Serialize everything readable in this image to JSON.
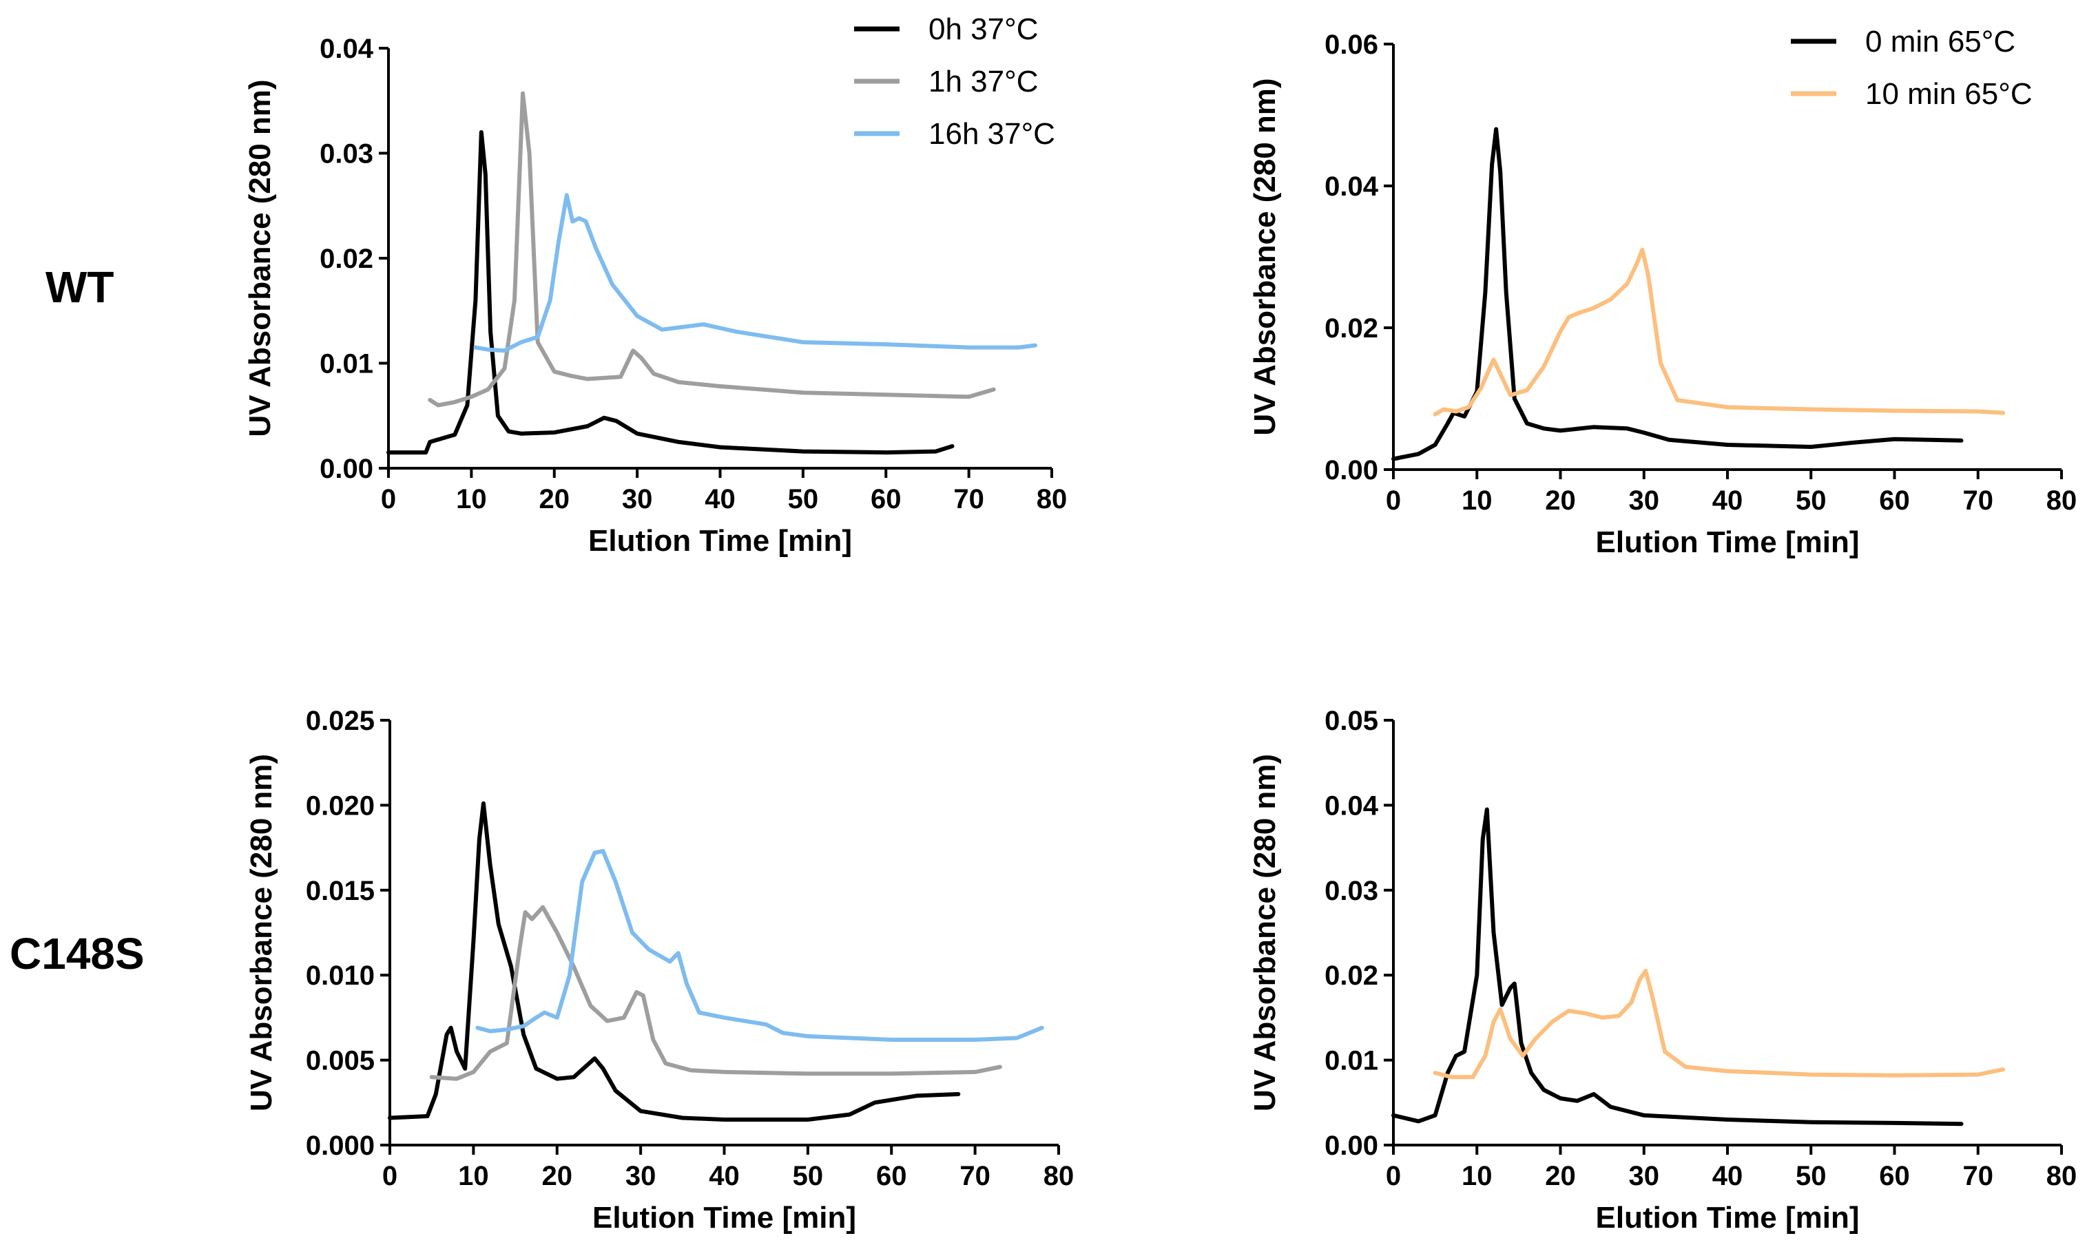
{
  "row_labels": {
    "top": "WT",
    "bottom": "C148S"
  },
  "chart_data": [
    {
      "type": "line",
      "row": "WT",
      "xlabel": "Elution Time [min]",
      "ylabel": "UV Absorbance (280 nm)",
      "xlim": [
        0,
        80
      ],
      "ylim": [
        0,
        0.04
      ],
      "xticks": [
        "0",
        "10",
        "20",
        "30",
        "40",
        "50",
        "60",
        "70",
        "80"
      ],
      "yticks": [
        "0.00",
        "0.01",
        "0.02",
        "0.03",
        "0.04"
      ],
      "legend_position": "top-right",
      "series": [
        {
          "name": "0h 37°C",
          "color": "#000000",
          "x": [
            0,
            4.5,
            5,
            8,
            9.5,
            10.5,
            11.2,
            11.7,
            12.3,
            13.2,
            14.5,
            16,
            20,
            24,
            26,
            27.5,
            30,
            35,
            40,
            50,
            60,
            66,
            68
          ],
          "y": [
            0.0015,
            0.0015,
            0.0025,
            0.0032,
            0.006,
            0.016,
            0.032,
            0.028,
            0.013,
            0.005,
            0.0035,
            0.0033,
            0.0034,
            0.004,
            0.0048,
            0.0045,
            0.0033,
            0.0025,
            0.002,
            0.0016,
            0.0015,
            0.0016,
            0.0021
          ]
        },
        {
          "name": "1h 37°C",
          "color": "#9e9e9e",
          "x": [
            5,
            6,
            8,
            10,
            12,
            14,
            15.2,
            16.2,
            17,
            18,
            20,
            22,
            24,
            28,
            29.5,
            30.5,
            32,
            35,
            40,
            50,
            60,
            70,
            73
          ],
          "y": [
            0.0065,
            0.006,
            0.0063,
            0.0068,
            0.0075,
            0.0095,
            0.016,
            0.0357,
            0.03,
            0.012,
            0.0092,
            0.0088,
            0.0085,
            0.0087,
            0.0112,
            0.0105,
            0.009,
            0.0082,
            0.0078,
            0.0072,
            0.007,
            0.0068,
            0.0075
          ]
        },
        {
          "name": "16h 37°C",
          "color": "#7ebcef",
          "x": [
            10.5,
            12,
            14,
            16,
            18,
            19.5,
            20.5,
            21.5,
            22.2,
            23,
            23.8,
            25,
            27,
            30,
            33,
            36,
            38,
            42,
            50,
            60,
            70,
            76,
            78
          ],
          "y": [
            0.0115,
            0.0113,
            0.0112,
            0.012,
            0.0125,
            0.016,
            0.0215,
            0.026,
            0.0235,
            0.0238,
            0.0235,
            0.021,
            0.0175,
            0.0145,
            0.0132,
            0.0135,
            0.0137,
            0.013,
            0.012,
            0.0118,
            0.0115,
            0.0115,
            0.0117
          ]
        }
      ]
    },
    {
      "type": "line",
      "row": "WT",
      "xlabel": "Elution Time [min]",
      "ylabel": "UV Absorbance (280 nm)",
      "xlim": [
        0,
        80
      ],
      "ylim": [
        0,
        0.06
      ],
      "xticks": [
        "0",
        "10",
        "20",
        "30",
        "40",
        "50",
        "60",
        "70",
        "80"
      ],
      "yticks": [
        "0.00",
        "0.02",
        "0.04",
        "0.06"
      ],
      "legend_position": "top-right",
      "series": [
        {
          "name": "0 min 65°C",
          "color": "#000000",
          "x": [
            0,
            3,
            5,
            6.5,
            7.2,
            8.5,
            10,
            11,
            11.8,
            12.3,
            12.8,
            13.5,
            14.5,
            16,
            18,
            20,
            24,
            28,
            30,
            33,
            40,
            50,
            55,
            60,
            68
          ],
          "y": [
            0.0015,
            0.0022,
            0.0035,
            0.0065,
            0.008,
            0.0075,
            0.011,
            0.025,
            0.043,
            0.048,
            0.042,
            0.025,
            0.01,
            0.0065,
            0.0058,
            0.0055,
            0.006,
            0.0058,
            0.0052,
            0.0042,
            0.0035,
            0.0032,
            0.0038,
            0.0043,
            0.0041
          ]
        },
        {
          "name": "10 min 65°C",
          "color": "#fcbf7e",
          "x": [
            5,
            6,
            7.5,
            9,
            10.5,
            11.5,
            12,
            12.8,
            14,
            16,
            18,
            20,
            21,
            22,
            24,
            26,
            28,
            29.2,
            29.8,
            30.5,
            32,
            34,
            40,
            50,
            60,
            70,
            73
          ],
          "y": [
            0.0078,
            0.0085,
            0.0082,
            0.0088,
            0.0115,
            0.0142,
            0.0155,
            0.0135,
            0.0105,
            0.0112,
            0.0145,
            0.0195,
            0.0215,
            0.022,
            0.0228,
            0.024,
            0.0262,
            0.0292,
            0.031,
            0.0275,
            0.015,
            0.0098,
            0.0088,
            0.0085,
            0.0083,
            0.0082,
            0.008
          ]
        }
      ]
    },
    {
      "type": "line",
      "row": "C148S",
      "xlabel": "Elution Time [min]",
      "ylabel": "UV Absorbance (280 nm)",
      "xlim": [
        0,
        80
      ],
      "ylim": [
        0,
        0.025
      ],
      "xticks": [
        "0",
        "10",
        "20",
        "30",
        "40",
        "50",
        "60",
        "70",
        "80"
      ],
      "yticks": [
        "0.000",
        "0.005",
        "0.010",
        "0.015",
        "0.020",
        "0.025"
      ],
      "legend_position": "none",
      "series": [
        {
          "name": "0h 37°C",
          "color": "#000000",
          "x": [
            0,
            4.5,
            5.5,
            6.8,
            7.3,
            8,
            9,
            10,
            10.7,
            11.2,
            12,
            13,
            14.5,
            16,
            17.5,
            20,
            22,
            24.5,
            25.5,
            27,
            30,
            35,
            40,
            50,
            55,
            58,
            63,
            68
          ],
          "y": [
            0.0016,
            0.0017,
            0.003,
            0.0065,
            0.0069,
            0.0055,
            0.0045,
            0.012,
            0.018,
            0.0201,
            0.0165,
            0.013,
            0.0105,
            0.0065,
            0.0045,
            0.0039,
            0.004,
            0.0051,
            0.0045,
            0.0032,
            0.002,
            0.0016,
            0.0015,
            0.0015,
            0.0018,
            0.0025,
            0.0029,
            0.003
          ]
        },
        {
          "name": "1h 37°C",
          "color": "#9e9e9e",
          "x": [
            5,
            8,
            10,
            12,
            14,
            15.5,
            16.2,
            17,
            18.3,
            20,
            22,
            24,
            26,
            28,
            29.5,
            30.3,
            31.5,
            33,
            36,
            40,
            50,
            60,
            70,
            73
          ],
          "y": [
            0.004,
            0.0039,
            0.0043,
            0.0055,
            0.006,
            0.0115,
            0.0137,
            0.0133,
            0.014,
            0.0125,
            0.0105,
            0.0082,
            0.0073,
            0.0075,
            0.009,
            0.0088,
            0.0062,
            0.0048,
            0.0044,
            0.0043,
            0.0042,
            0.0042,
            0.0043,
            0.0046
          ]
        },
        {
          "name": "16h 37°C",
          "color": "#7ebcef",
          "x": [
            10.5,
            12,
            14,
            16,
            17.5,
            18.5,
            20,
            21.5,
            23,
            24.5,
            25.5,
            27,
            29,
            31,
            33.5,
            34.5,
            35.5,
            37,
            40,
            45,
            47,
            50,
            60,
            70,
            75,
            78
          ],
          "y": [
            0.0069,
            0.0067,
            0.0068,
            0.007,
            0.0075,
            0.0078,
            0.0075,
            0.01,
            0.0155,
            0.0172,
            0.0173,
            0.0155,
            0.0125,
            0.0115,
            0.0108,
            0.0113,
            0.0095,
            0.0078,
            0.0075,
            0.0071,
            0.0066,
            0.0064,
            0.0062,
            0.0062,
            0.0063,
            0.0069
          ]
        }
      ]
    },
    {
      "type": "line",
      "row": "C148S",
      "xlabel": "Elution Time [min]",
      "ylabel": "UV Absorbance (280 nm)",
      "xlim": [
        0,
        80
      ],
      "ylim": [
        0,
        0.05
      ],
      "xticks": [
        "0",
        "10",
        "20",
        "30",
        "40",
        "50",
        "60",
        "70",
        "80"
      ],
      "yticks": [
        "0.00",
        "0.01",
        "0.02",
        "0.03",
        "0.04",
        "0.05"
      ],
      "legend_position": "none",
      "series": [
        {
          "name": "0 min 65°C",
          "color": "#000000",
          "x": [
            0,
            3,
            5,
            6.5,
            7.5,
            8.5,
            10,
            10.7,
            11.2,
            12,
            13,
            14,
            14.5,
            15.3,
            16.5,
            18,
            20,
            22,
            24,
            26,
            30,
            40,
            50,
            60,
            68
          ],
          "y": [
            0.0035,
            0.0028,
            0.0035,
            0.0085,
            0.0105,
            0.011,
            0.02,
            0.036,
            0.0395,
            0.025,
            0.0165,
            0.0185,
            0.019,
            0.012,
            0.0085,
            0.0065,
            0.0055,
            0.0052,
            0.006,
            0.0045,
            0.0035,
            0.003,
            0.0027,
            0.0026,
            0.0025
          ]
        },
        {
          "name": "10 min 65°C",
          "color": "#fcbf7e",
          "x": [
            5,
            7,
            9.5,
            11,
            12,
            12.8,
            14,
            15.5,
            17,
            19,
            21,
            23,
            25,
            27,
            28.5,
            29.5,
            30.2,
            31,
            32.5,
            35,
            40,
            50,
            60,
            70,
            73
          ],
          "y": [
            0.0085,
            0.008,
            0.008,
            0.0105,
            0.0145,
            0.016,
            0.0125,
            0.0105,
            0.0125,
            0.0145,
            0.0158,
            0.0155,
            0.015,
            0.0152,
            0.0168,
            0.0195,
            0.0205,
            0.0175,
            0.011,
            0.0092,
            0.0087,
            0.0083,
            0.0082,
            0.0083,
            0.0089
          ]
        }
      ]
    }
  ]
}
